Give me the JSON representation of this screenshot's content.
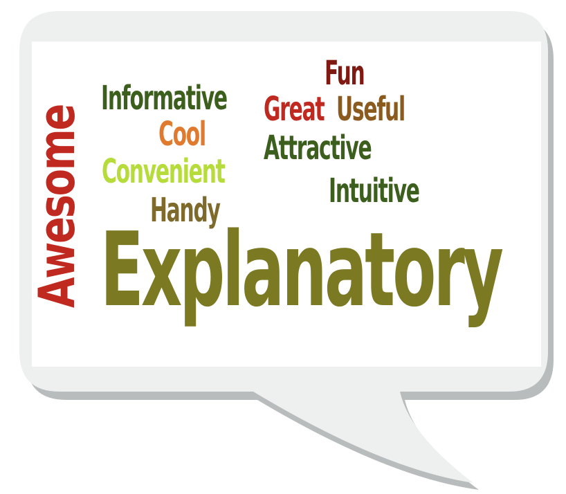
{
  "colors": {
    "bubble_fill": "#eef0f0",
    "bubble_shadow": "#b9bcbc",
    "panel": "#ffffff"
  },
  "words": {
    "awesome": {
      "text": "Awesome",
      "color": "#c0291f"
    },
    "informative": {
      "text": "Informative",
      "color": "#3c5f1e"
    },
    "cool": {
      "text": "Cool",
      "color": "#e07a2e"
    },
    "convenient": {
      "text": "Convenient",
      "color": "#b5dc3a"
    },
    "handy": {
      "text": "Handy",
      "color": "#7e6a2a"
    },
    "fun": {
      "text": "Fun",
      "color": "#7e1a12"
    },
    "great": {
      "text": "Great",
      "color": "#c0291f"
    },
    "useful": {
      "text": "Useful",
      "color": "#8a5a1e"
    },
    "attractive": {
      "text": "Attractive",
      "color": "#3c5f1e"
    },
    "intuitive": {
      "text": "Intuitive",
      "color": "#3c5f1e"
    },
    "explanatory": {
      "text": "Explanatory",
      "color": "#7b7a23"
    }
  }
}
